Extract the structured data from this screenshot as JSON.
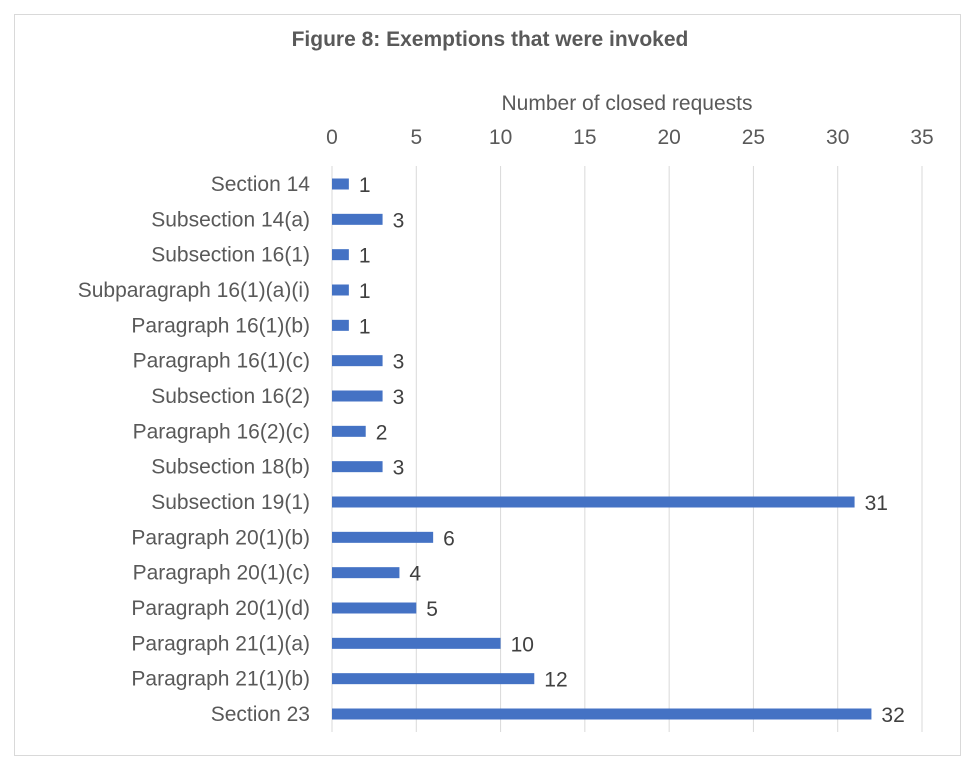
{
  "chart_data": {
    "type": "bar",
    "orientation": "horizontal",
    "title": "Figure 8: Exemptions that were invoked",
    "xlabel": "Number of closed requests",
    "ylabel": "",
    "xlim": [
      0,
      35
    ],
    "xticks": [
      0,
      5,
      10,
      15,
      20,
      25,
      30,
      35
    ],
    "x_axis_position": "top",
    "grid": true,
    "categories": [
      "Section 14",
      "Subsection 14(a)",
      "Subsection 16(1)",
      "Subparagraph 16(1)(a)(i)",
      "Paragraph 16(1)(b)",
      "Paragraph 16(1)(c)",
      "Subsection 16(2)",
      "Paragraph 16(2)(c)",
      "Subsection 18(b)",
      "Subsection 19(1)",
      "Paragraph 20(1)(b)",
      "Paragraph 20(1)(c)",
      "Paragraph 20(1)(d)",
      "Paragraph 21(1)(a)",
      "Paragraph 21(1)(b)",
      "Section 23"
    ],
    "values": [
      1,
      3,
      1,
      1,
      1,
      3,
      3,
      2,
      3,
      31,
      6,
      4,
      5,
      10,
      12,
      32
    ],
    "bar_color": "#4472C4",
    "data_labels": true
  }
}
